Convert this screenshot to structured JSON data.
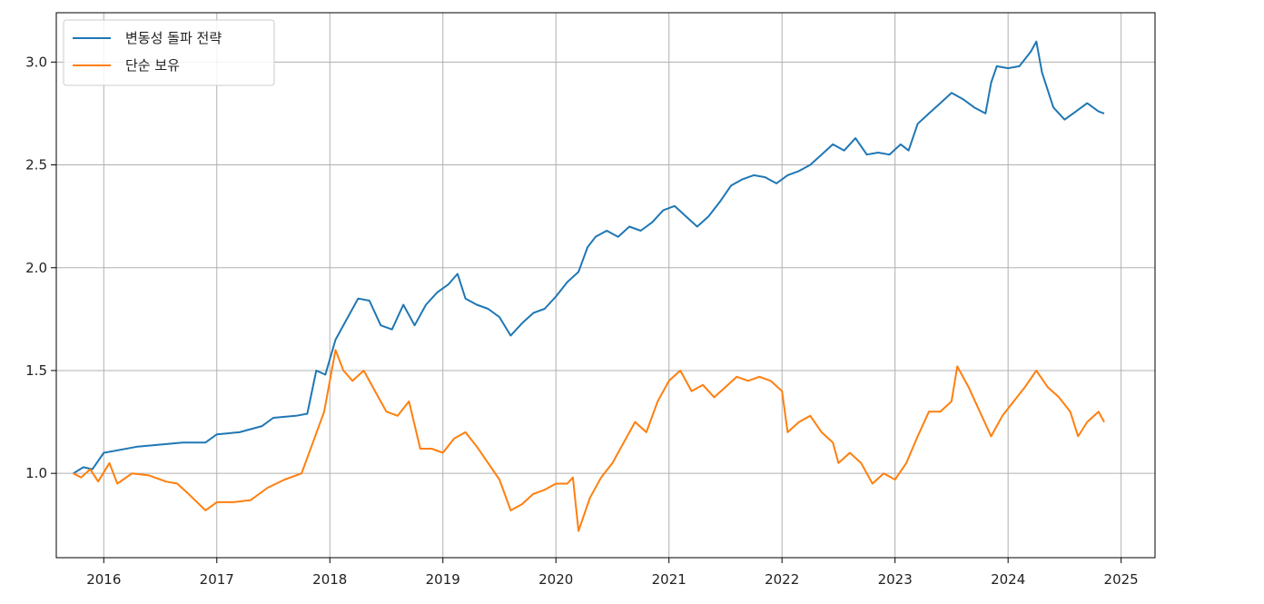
{
  "chart_data": {
    "type": "line",
    "title": "",
    "xlabel": "",
    "ylabel": "",
    "grid": true,
    "legend_position": "top-left",
    "xlim": [
      2015.58,
      2025.3
    ],
    "ylim": [
      0.59,
      3.24
    ],
    "x_ticks": [
      {
        "value": 2016,
        "label": "2016"
      },
      {
        "value": 2017,
        "label": "2017"
      },
      {
        "value": 2018,
        "label": "2018"
      },
      {
        "value": 2019,
        "label": "2019"
      },
      {
        "value": 2020,
        "label": "2020"
      },
      {
        "value": 2021,
        "label": "2021"
      },
      {
        "value": 2022,
        "label": "2022"
      },
      {
        "value": 2023,
        "label": "2023"
      },
      {
        "value": 2024,
        "label": "2024"
      },
      {
        "value": 2025,
        "label": "2025"
      }
    ],
    "y_ticks": [
      {
        "value": 1.0,
        "label": "1.0"
      },
      {
        "value": 1.5,
        "label": "1.5"
      },
      {
        "value": 2.0,
        "label": "2.0"
      },
      {
        "value": 2.5,
        "label": "2.5"
      },
      {
        "value": 3.0,
        "label": "3.0"
      }
    ],
    "series": [
      {
        "name": "변동성 돌파 전략",
        "color": "#1f77b4",
        "points": [
          [
            2015.73,
            1.0
          ],
          [
            2015.82,
            1.03
          ],
          [
            2015.9,
            1.02
          ],
          [
            2016.0,
            1.1
          ],
          [
            2016.1,
            1.11
          ],
          [
            2016.3,
            1.13
          ],
          [
            2016.5,
            1.14
          ],
          [
            2016.7,
            1.15
          ],
          [
            2016.9,
            1.15
          ],
          [
            2017.0,
            1.19
          ],
          [
            2017.2,
            1.2
          ],
          [
            2017.4,
            1.23
          ],
          [
            2017.5,
            1.27
          ],
          [
            2017.7,
            1.28
          ],
          [
            2017.8,
            1.29
          ],
          [
            2017.88,
            1.5
          ],
          [
            2017.96,
            1.48
          ],
          [
            2018.05,
            1.65
          ],
          [
            2018.15,
            1.75
          ],
          [
            2018.25,
            1.85
          ],
          [
            2018.35,
            1.84
          ],
          [
            2018.45,
            1.72
          ],
          [
            2018.55,
            1.7
          ],
          [
            2018.65,
            1.82
          ],
          [
            2018.75,
            1.72
          ],
          [
            2018.85,
            1.82
          ],
          [
            2018.95,
            1.88
          ],
          [
            2019.05,
            1.92
          ],
          [
            2019.13,
            1.97
          ],
          [
            2019.2,
            1.85
          ],
          [
            2019.3,
            1.82
          ],
          [
            2019.4,
            1.8
          ],
          [
            2019.5,
            1.76
          ],
          [
            2019.6,
            1.67
          ],
          [
            2019.7,
            1.73
          ],
          [
            2019.8,
            1.78
          ],
          [
            2019.9,
            1.8
          ],
          [
            2020.0,
            1.86
          ],
          [
            2020.1,
            1.93
          ],
          [
            2020.2,
            1.98
          ],
          [
            2020.28,
            2.1
          ],
          [
            2020.35,
            2.15
          ],
          [
            2020.45,
            2.18
          ],
          [
            2020.55,
            2.15
          ],
          [
            2020.65,
            2.2
          ],
          [
            2020.75,
            2.18
          ],
          [
            2020.85,
            2.22
          ],
          [
            2020.95,
            2.28
          ],
          [
            2021.05,
            2.3
          ],
          [
            2021.15,
            2.25
          ],
          [
            2021.25,
            2.2
          ],
          [
            2021.35,
            2.25
          ],
          [
            2021.45,
            2.32
          ],
          [
            2021.55,
            2.4
          ],
          [
            2021.65,
            2.43
          ],
          [
            2021.75,
            2.45
          ],
          [
            2021.85,
            2.44
          ],
          [
            2021.95,
            2.41
          ],
          [
            2022.05,
            2.45
          ],
          [
            2022.15,
            2.47
          ],
          [
            2022.25,
            2.5
          ],
          [
            2022.35,
            2.55
          ],
          [
            2022.45,
            2.6
          ],
          [
            2022.55,
            2.57
          ],
          [
            2022.65,
            2.63
          ],
          [
            2022.75,
            2.55
          ],
          [
            2022.85,
            2.56
          ],
          [
            2022.95,
            2.55
          ],
          [
            2023.05,
            2.6
          ],
          [
            2023.12,
            2.57
          ],
          [
            2023.2,
            2.7
          ],
          [
            2023.3,
            2.75
          ],
          [
            2023.4,
            2.8
          ],
          [
            2023.5,
            2.85
          ],
          [
            2023.6,
            2.82
          ],
          [
            2023.7,
            2.78
          ],
          [
            2023.8,
            2.75
          ],
          [
            2023.85,
            2.9
          ],
          [
            2023.9,
            2.98
          ],
          [
            2024.0,
            2.97
          ],
          [
            2024.1,
            2.98
          ],
          [
            2024.2,
            3.05
          ],
          [
            2024.25,
            3.1
          ],
          [
            2024.3,
            2.95
          ],
          [
            2024.4,
            2.78
          ],
          [
            2024.5,
            2.72
          ],
          [
            2024.6,
            2.76
          ],
          [
            2024.7,
            2.8
          ],
          [
            2024.8,
            2.76
          ],
          [
            2024.85,
            2.75
          ]
        ]
      },
      {
        "name": "단순 보유",
        "color": "#ff7f0e",
        "points": [
          [
            2015.73,
            1.0
          ],
          [
            2015.8,
            0.98
          ],
          [
            2015.88,
            1.02
          ],
          [
            2015.95,
            0.96
          ],
          [
            2016.05,
            1.05
          ],
          [
            2016.12,
            0.95
          ],
          [
            2016.25,
            1.0
          ],
          [
            2016.4,
            0.99
          ],
          [
            2016.55,
            0.96
          ],
          [
            2016.65,
            0.95
          ],
          [
            2016.75,
            0.9
          ],
          [
            2016.9,
            0.82
          ],
          [
            2017.0,
            0.86
          ],
          [
            2017.15,
            0.86
          ],
          [
            2017.3,
            0.87
          ],
          [
            2017.45,
            0.93
          ],
          [
            2017.6,
            0.97
          ],
          [
            2017.75,
            1.0
          ],
          [
            2017.85,
            1.15
          ],
          [
            2017.95,
            1.3
          ],
          [
            2018.05,
            1.6
          ],
          [
            2018.12,
            1.5
          ],
          [
            2018.2,
            1.45
          ],
          [
            2018.3,
            1.5
          ],
          [
            2018.4,
            1.4
          ],
          [
            2018.5,
            1.3
          ],
          [
            2018.6,
            1.28
          ],
          [
            2018.7,
            1.35
          ],
          [
            2018.8,
            1.12
          ],
          [
            2018.9,
            1.12
          ],
          [
            2019.0,
            1.1
          ],
          [
            2019.1,
            1.17
          ],
          [
            2019.2,
            1.2
          ],
          [
            2019.3,
            1.13
          ],
          [
            2019.4,
            1.05
          ],
          [
            2019.5,
            0.97
          ],
          [
            2019.6,
            0.82
          ],
          [
            2019.7,
            0.85
          ],
          [
            2019.8,
            0.9
          ],
          [
            2019.9,
            0.92
          ],
          [
            2020.0,
            0.95
          ],
          [
            2020.1,
            0.95
          ],
          [
            2020.15,
            0.98
          ],
          [
            2020.2,
            0.72
          ],
          [
            2020.3,
            0.88
          ],
          [
            2020.4,
            0.98
          ],
          [
            2020.5,
            1.05
          ],
          [
            2020.6,
            1.15
          ],
          [
            2020.7,
            1.25
          ],
          [
            2020.8,
            1.2
          ],
          [
            2020.9,
            1.35
          ],
          [
            2021.0,
            1.45
          ],
          [
            2021.1,
            1.5
          ],
          [
            2021.2,
            1.4
          ],
          [
            2021.3,
            1.43
          ],
          [
            2021.4,
            1.37
          ],
          [
            2021.5,
            1.42
          ],
          [
            2021.6,
            1.47
          ],
          [
            2021.7,
            1.45
          ],
          [
            2021.8,
            1.47
          ],
          [
            2021.9,
            1.45
          ],
          [
            2022.0,
            1.4
          ],
          [
            2022.05,
            1.2
          ],
          [
            2022.15,
            1.25
          ],
          [
            2022.25,
            1.28
          ],
          [
            2022.35,
            1.2
          ],
          [
            2022.45,
            1.15
          ],
          [
            2022.5,
            1.05
          ],
          [
            2022.6,
            1.1
          ],
          [
            2022.7,
            1.05
          ],
          [
            2022.8,
            0.95
          ],
          [
            2022.9,
            1.0
          ],
          [
            2023.0,
            0.97
          ],
          [
            2023.1,
            1.05
          ],
          [
            2023.2,
            1.18
          ],
          [
            2023.3,
            1.3
          ],
          [
            2023.4,
            1.3
          ],
          [
            2023.5,
            1.35
          ],
          [
            2023.55,
            1.52
          ],
          [
            2023.65,
            1.42
          ],
          [
            2023.75,
            1.3
          ],
          [
            2023.85,
            1.18
          ],
          [
            2023.95,
            1.28
          ],
          [
            2024.05,
            1.35
          ],
          [
            2024.15,
            1.42
          ],
          [
            2024.25,
            1.5
          ],
          [
            2024.35,
            1.42
          ],
          [
            2024.45,
            1.37
          ],
          [
            2024.55,
            1.3
          ],
          [
            2024.62,
            1.18
          ],
          [
            2024.7,
            1.25
          ],
          [
            2024.8,
            1.3
          ],
          [
            2024.85,
            1.25
          ]
        ]
      }
    ]
  }
}
